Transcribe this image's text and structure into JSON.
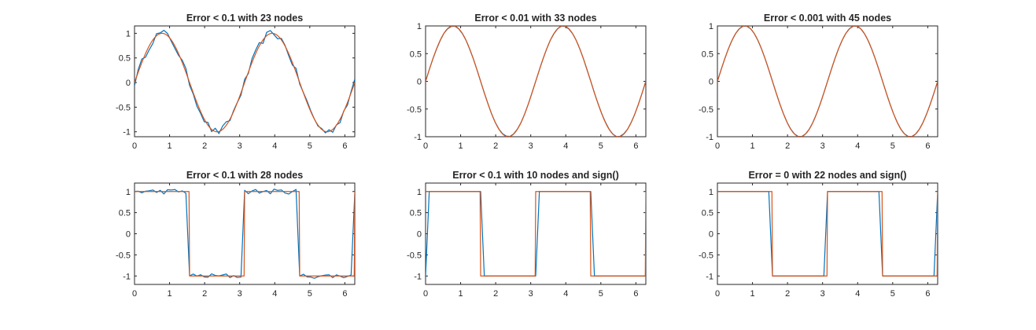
{
  "colors": {
    "approximation": "#0072BD",
    "target": "#D95319",
    "axes": "#262626"
  },
  "chart_data": [
    {
      "type": "line",
      "title": "Error < 0.1 with 23 nodes",
      "function": "sin(2x)",
      "xlim": [
        0,
        6.2832
      ],
      "ylim": [
        -1.1,
        1.15
      ],
      "xticks": [
        "0",
        "1",
        "2",
        "3",
        "4",
        "5",
        "6"
      ],
      "yticks": [
        "-1",
        "-0.5",
        "0",
        "0.5",
        "1"
      ],
      "ytick_values": [
        -1,
        -0.5,
        0,
        0.5,
        1
      ],
      "approx_noise": 0.08,
      "grid": false
    },
    {
      "type": "line",
      "title": "Error < 0.01 with 33 nodes",
      "function": "sin(2x)",
      "xlim": [
        0,
        6.2832
      ],
      "ylim": [
        -1,
        1
      ],
      "xticks": [
        "0",
        "1",
        "2",
        "3",
        "4",
        "5",
        "6"
      ],
      "yticks": [
        "-1",
        "-0.5",
        "0",
        "0.5",
        "1"
      ],
      "ytick_values": [
        -1,
        -0.5,
        0,
        0.5,
        1
      ],
      "approx_noise": 0.005,
      "grid": false
    },
    {
      "type": "line",
      "title": "Error < 0.001 with 45 nodes",
      "function": "sin(2x)",
      "xlim": [
        0,
        6.2832
      ],
      "ylim": [
        -1,
        1
      ],
      "xticks": [
        "0",
        "1",
        "2",
        "3",
        "4",
        "5",
        "6"
      ],
      "yticks": [
        "-1",
        "-0.5",
        "0",
        "0.5",
        "1"
      ],
      "ytick_values": [
        -1,
        -0.5,
        0,
        0.5,
        1
      ],
      "approx_noise": 0.0005,
      "grid": false
    },
    {
      "type": "line",
      "title": "Error < 0.1 with 28 nodes",
      "function": "sign(sin(2x))",
      "xlim": [
        0,
        6.2832
      ],
      "ylim": [
        -1.2,
        1.2
      ],
      "xticks": [
        "0",
        "1",
        "2",
        "3",
        "4",
        "5",
        "6"
      ],
      "yticks": [
        "-1",
        "-0.5",
        "0",
        "0.5",
        "1"
      ],
      "ytick_values": [
        -1,
        -0.5,
        0,
        0.5,
        1
      ],
      "approx_noise": 0.06,
      "grid": false
    },
    {
      "type": "line",
      "title": "Error < 0.1 with 10 nodes and sign()",
      "function": "sign(sin(2x))",
      "xlim": [
        0,
        6.2832
      ],
      "ylim": [
        -1.2,
        1.2
      ],
      "xticks": [
        "0",
        "1",
        "2",
        "3",
        "4",
        "5",
        "6"
      ],
      "yticks": [
        "-1",
        "-0.5",
        "0",
        "0.5",
        "1"
      ],
      "ytick_values": [
        -1,
        -0.5,
        0,
        0.5,
        1
      ],
      "approx_noise": 0,
      "approx_shift": 0.1,
      "grid": false
    },
    {
      "type": "line",
      "title": "Error = 0 with 22 nodes and sign()",
      "function": "sign(sin(2x))",
      "xlim": [
        0,
        6.2832
      ],
      "ylim": [
        -1.2,
        1.2
      ],
      "xticks": [
        "0",
        "1",
        "2",
        "3",
        "4",
        "5",
        "6"
      ],
      "yticks": [
        "-1",
        "-0.5",
        "0",
        "0.5",
        "1"
      ],
      "ytick_values": [
        -1,
        -0.5,
        0,
        0.5,
        1
      ],
      "approx_noise": 0,
      "grid": false
    }
  ]
}
